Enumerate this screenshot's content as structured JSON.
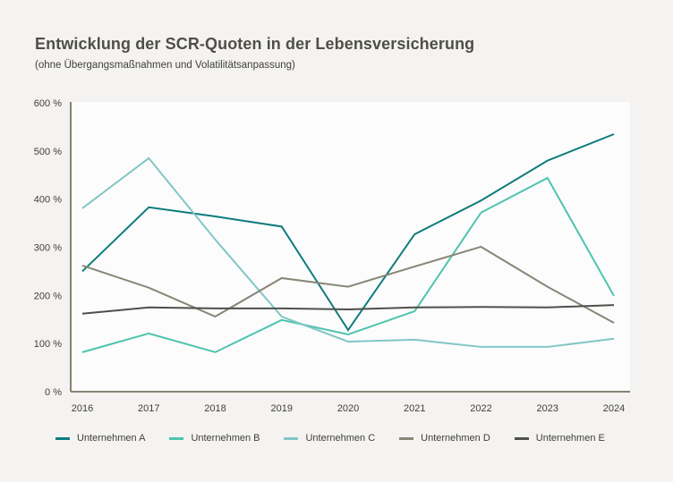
{
  "chart_data": {
    "type": "line",
    "title": "Entwicklung der SCR-Quoten in der Lebensversicherung",
    "subtitle": "(ohne Übergangsmaßnahmen und Volatilitätsanpassung)",
    "xlabel": "",
    "ylabel": "",
    "x": [
      "2016",
      "2017",
      "2018",
      "2019",
      "2020",
      "2021",
      "2022",
      "2023",
      "2024"
    ],
    "ylim": [
      0,
      600
    ],
    "yticks": [
      0,
      100,
      200,
      300,
      400,
      500,
      600
    ],
    "ytick_labels": [
      "0 %",
      "100 %",
      "200 %",
      "300 %",
      "400 %",
      "500 %",
      "600 %"
    ],
    "grid": false,
    "legend_position": "bottom",
    "series": [
      {
        "name": "Unternehmen A",
        "color": "#0e7b7b",
        "values": [
          250,
          383,
          364,
          343,
          128,
          327,
          397,
          480,
          535
        ]
      },
      {
        "name": "Unternehmen B",
        "color": "#4ec4ad",
        "values": [
          82,
          121,
          82,
          149,
          119,
          167,
          372,
          444,
          199
        ]
      },
      {
        "name": "Unternehmen C",
        "color": "#82c6c6",
        "values": [
          381,
          485,
          316,
          156,
          104,
          108,
          93,
          93,
          110
        ]
      },
      {
        "name": "Unternehmen D",
        "color": "#878676",
        "values": [
          262,
          216,
          156,
          236,
          218,
          260,
          301,
          218,
          143
        ]
      },
      {
        "name": "Unternehmen E",
        "color": "#4f4f4a",
        "values": [
          162,
          175,
          173,
          173,
          171,
          175,
          176,
          175,
          180
        ]
      }
    ]
  }
}
